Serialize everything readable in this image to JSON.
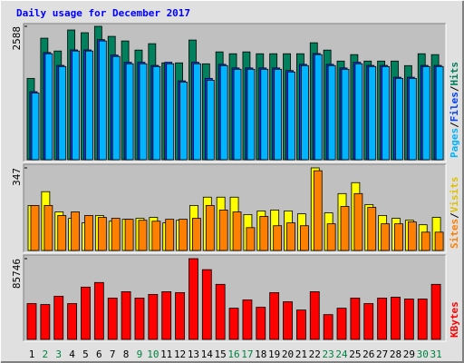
{
  "chart_data": [
    {
      "type": "bar",
      "title": "Daily usage for December 2017",
      "label_separator": "/",
      "ylim": [
        0,
        2588
      ],
      "yticks": [
        2588
      ],
      "series": [
        {
          "name": "Hits",
          "color": "#00805c",
          "label_color": "#00805c",
          "values": [
            1578,
            2358,
            2109,
            2517,
            2464,
            2588,
            2393,
            2304,
            2127,
            2251,
            1879,
            1879,
            2322,
            1861,
            2092,
            2056,
            2092,
            2056,
            2056,
            2056,
            2056,
            2269,
            2127,
            1914,
            2039,
            1914,
            1914,
            1914,
            1826,
            2056,
            2039
          ]
        },
        {
          "name": "Files",
          "color": "#0040ff",
          "label_color": "#0040ff",
          "values": [
            1320,
            2080,
            1830,
            2130,
            2130,
            2330,
            2030,
            1890,
            1890,
            1830,
            1890,
            1530,
            1890,
            1578,
            1850,
            1780,
            1780,
            1780,
            1780,
            1730,
            1850,
            2060,
            1850,
            1780,
            1890,
            1830,
            1830,
            1600,
            1600,
            1830,
            1830
          ]
        },
        {
          "name": "Pages",
          "color": "#00b4ff",
          "label_color": "#00b4ff",
          "values": [
            1294,
            2056,
            1808,
            2109,
            2109,
            2304,
            2003,
            1861,
            1861,
            1808,
            1861,
            1507,
            1861,
            1542,
            1826,
            1755,
            1755,
            1755,
            1755,
            1702,
            1826,
            2039,
            1826,
            1755,
            1861,
            1808,
            1808,
            1578,
            1578,
            1808,
            1808
          ]
        }
      ]
    },
    {
      "type": "bar",
      "label_separator": "/",
      "ylim": [
        0,
        347
      ],
      "yticks": [
        347
      ],
      "series": [
        {
          "name": "Visits",
          "color": "#ffff00",
          "label_color": "#e0c000",
          "values": [
            189,
            247,
            162,
            135,
            116,
            147,
            123,
            131,
            135,
            139,
            116,
            127,
            189,
            224,
            224,
            224,
            151,
            166,
            170,
            166,
            154,
            347,
            158,
            239,
            285,
            193,
            147,
            135,
            127,
            108,
            139
          ]
        },
        {
          "name": "Sites",
          "color": "#ff8000",
          "label_color": "#ff8000",
          "values": [
            189,
            189,
            147,
            162,
            147,
            139,
            135,
            131,
            127,
            123,
            131,
            131,
            135,
            189,
            170,
            162,
            96,
            143,
            104,
            116,
            104,
            335,
            112,
            185,
            239,
            181,
            112,
            112,
            120,
            77,
            77
          ]
        }
      ]
    },
    {
      "type": "bar",
      "ylim": [
        0,
        85746
      ],
      "yticks": [
        85746
      ],
      "categories": [
        "1",
        "2",
        "3",
        "4",
        "5",
        "6",
        "7",
        "8",
        "9",
        "10",
        "11",
        "12",
        "13",
        "14",
        "15",
        "16",
        "17",
        "18",
        "19",
        "20",
        "21",
        "22",
        "23",
        "24",
        "25",
        "26",
        "27",
        "28",
        "29",
        "30",
        "31"
      ],
      "category_colors": [
        "#000000",
        "#008040",
        "#008040",
        "#000000",
        "#000000",
        "#000000",
        "#000000",
        "#000000",
        "#008040",
        "#008040",
        "#000000",
        "#000000",
        "#000000",
        "#000000",
        "#000000",
        "#008040",
        "#008040",
        "#000000",
        "#000000",
        "#000000",
        "#000000",
        "#000000",
        "#008040",
        "#008040",
        "#000000",
        "#000000",
        "#000000",
        "#000000",
        "#000000",
        "#008040",
        "#008040"
      ],
      "series": [
        {
          "name": "KBytes",
          "color": "#ff0000",
          "label_color": "#ff0000",
          "values": [
            38002,
            37030,
            45795,
            38002,
            55538,
            60410,
            43847,
            50667,
            43847,
            47744,
            50667,
            49718,
            85746,
            74054,
            58462,
            33129,
            41898,
            34103,
            49693,
            39950,
            31181,
            50667,
            26308,
            33129,
            43847,
            38002,
            43847,
            44822,
            42873,
            42873,
            58462
          ]
        }
      ]
    }
  ]
}
